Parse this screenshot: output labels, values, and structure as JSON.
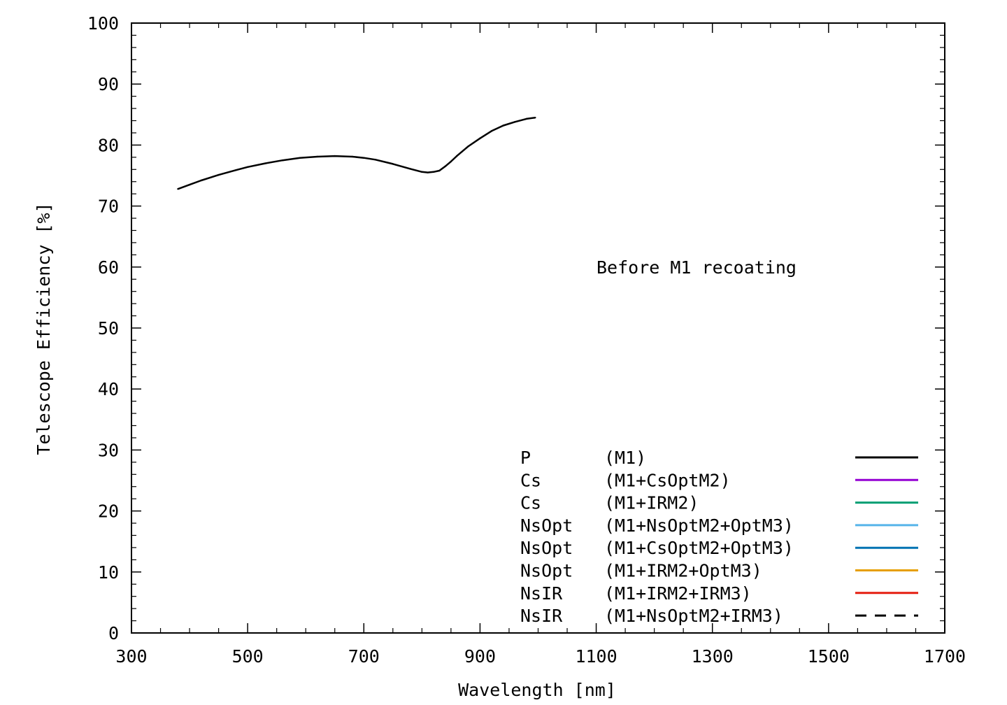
{
  "chart_data": {
    "type": "line",
    "title": "",
    "xlabel": "Wavelength [nm]",
    "ylabel": "Telescope Efficiency [%]",
    "xlim": [
      300,
      1700
    ],
    "ylim": [
      0,
      100
    ],
    "xticks": [
      300,
      500,
      700,
      900,
      1100,
      1300,
      1500,
      1700
    ],
    "yticks": [
      0,
      10,
      20,
      30,
      40,
      50,
      60,
      70,
      80,
      90,
      100
    ],
    "grid": false,
    "legend_position": "bottom-right",
    "annotation": "Before M1 recoating",
    "series": [
      {
        "name": "P",
        "config": "(M1)",
        "color": "#000000",
        "dash": "solid",
        "x": [
          380,
          400,
          420,
          450,
          480,
          500,
          530,
          560,
          590,
          620,
          650,
          680,
          700,
          720,
          750,
          780,
          800,
          810,
          820,
          830,
          840,
          850,
          860,
          880,
          900,
          920,
          940,
          960,
          980,
          995
        ],
        "y": [
          72.8,
          73.5,
          74.2,
          75.1,
          75.9,
          76.4,
          77.0,
          77.5,
          77.9,
          78.1,
          78.2,
          78.1,
          77.9,
          77.6,
          76.9,
          76.1,
          75.6,
          75.5,
          75.6,
          75.8,
          76.5,
          77.3,
          78.2,
          79.8,
          81.1,
          82.3,
          83.2,
          83.8,
          84.3,
          84.5
        ]
      },
      {
        "name": "Cs",
        "config": "(M1+CsOptM2)",
        "color": "#9400d3",
        "dash": "solid",
        "x": [],
        "y": []
      },
      {
        "name": "Cs",
        "config": "(M1+IRM2)",
        "color": "#009e73",
        "dash": "solid",
        "x": [],
        "y": []
      },
      {
        "name": "NsOpt",
        "config": "(M1+NsOptM2+OptM3)",
        "color": "#56b4e9",
        "dash": "solid",
        "x": [],
        "y": []
      },
      {
        "name": "NsOpt",
        "config": "(M1+CsOptM2+OptM3)",
        "color": "#0072b2",
        "dash": "solid",
        "x": [],
        "y": []
      },
      {
        "name": "NsOpt",
        "config": "(M1+IRM2+OptM3)",
        "color": "#e69f00",
        "dash": "solid",
        "x": [],
        "y": []
      },
      {
        "name": "NsIR",
        "config": "(M1+IRM2+IRM3)",
        "color": "#e51e10",
        "dash": "solid",
        "x": [],
        "y": []
      },
      {
        "name": "NsIR",
        "config": "(M1+NsOptM2+IRM3)",
        "color": "#000000",
        "dash": "dashed",
        "x": [],
        "y": []
      }
    ]
  }
}
